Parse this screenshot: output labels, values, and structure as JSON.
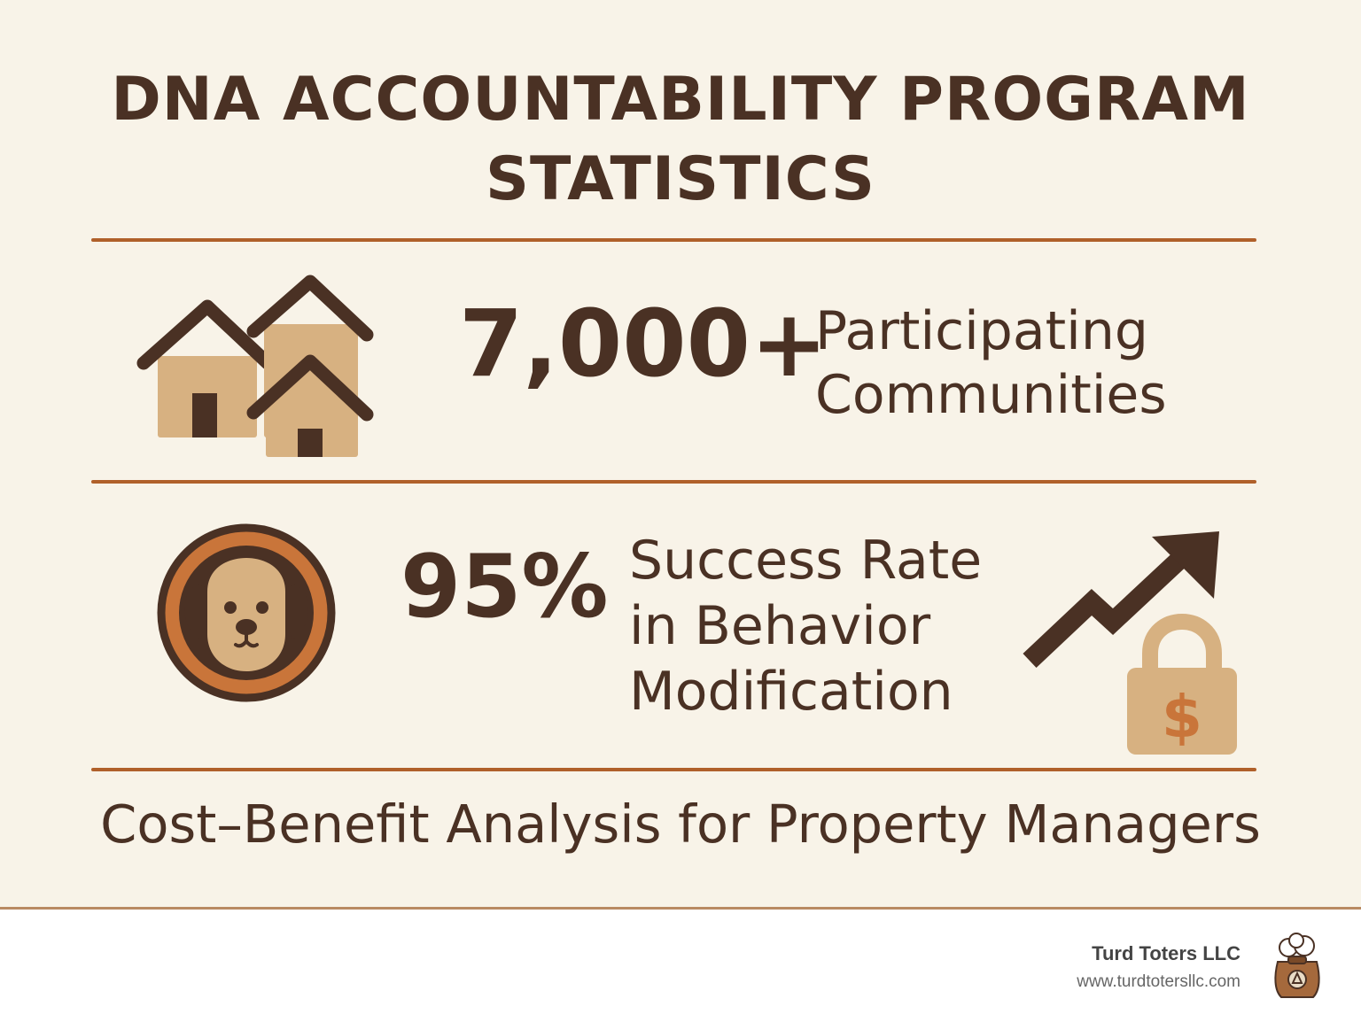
{
  "title": {
    "line1": "DNA ACCOUNTABILITY PROGRAM",
    "line2": "STATISTICS"
  },
  "stats": [
    {
      "number": "7,000+",
      "label_line1": "Participating",
      "label_line2": "Communities",
      "icon": "houses-icon"
    },
    {
      "number": "95%",
      "label_line1": "Success Rate",
      "label_line2": "in Behavior",
      "label_line3": "Modification",
      "icon": "dog-face-icon"
    }
  ],
  "decorations": {
    "growth_icon": "trend-up-arrow-icon",
    "cost_icon": "dollar-lock-icon",
    "lock_symbol": "$"
  },
  "subtitle": "Cost–Benefit Analysis for Property Managers",
  "footer": {
    "brand_name": "Turd Toters LLC",
    "brand_url": "www.turdtotersllc.com",
    "logo_icon": "waste-bag-logo-icon"
  },
  "colors": {
    "background": "#f8f3e8",
    "text": "#4a3124",
    "accent": "#b0602a",
    "tan": "#d7b181",
    "orange": "#c9753a"
  }
}
